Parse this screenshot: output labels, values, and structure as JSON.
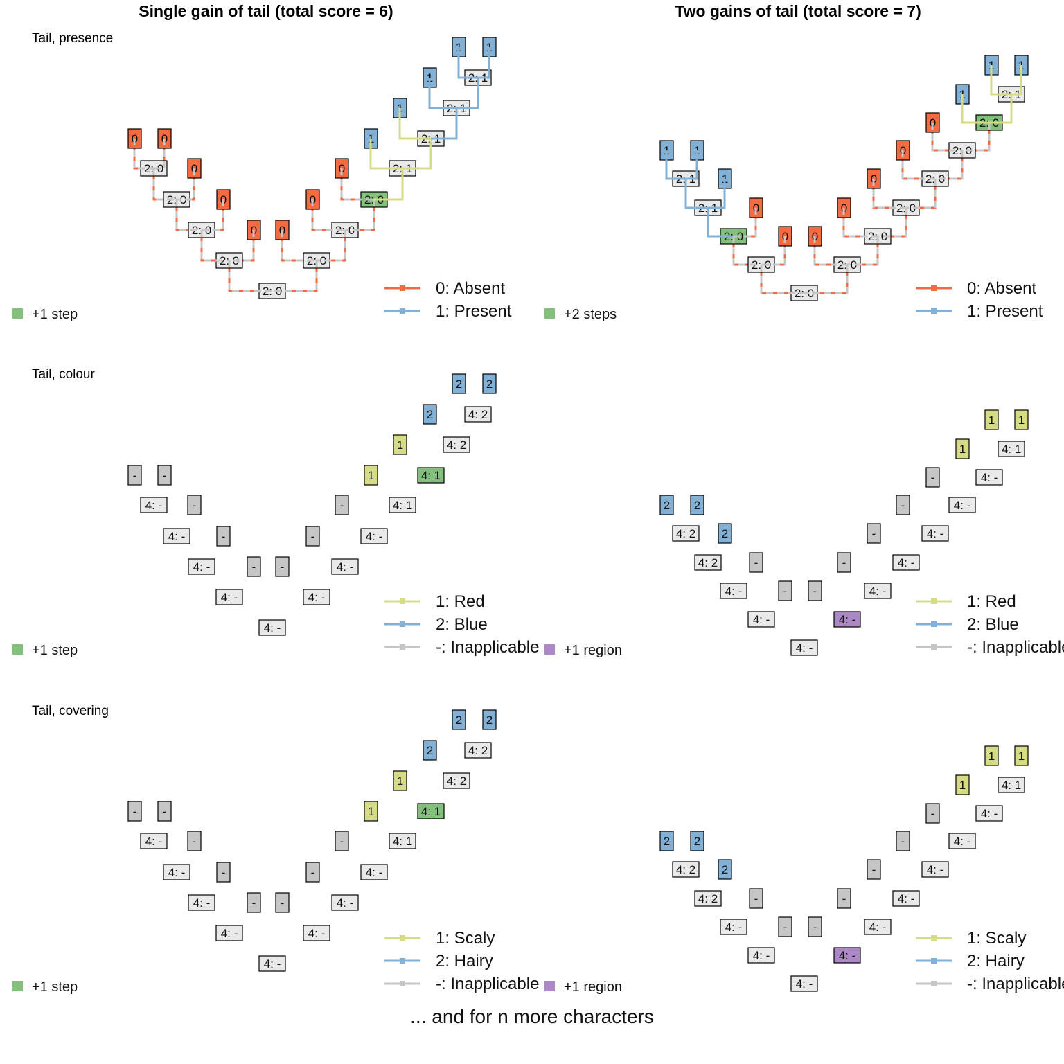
{
  "column_titles": [
    "Single gain of tail (total score = 6)",
    "Two gains of tail (total score = 7)"
  ],
  "footer": "... and for n more characters",
  "colors": {
    "absent": "#f26b43",
    "present": "#83b1d5",
    "red": "#d6dc86",
    "blue": "#83b1d5",
    "inapplicable": "#c6c6c6",
    "node_fill": "#e9e9e9",
    "step_highlight": "#82c07c",
    "region_highlight": "#ad88c6",
    "tip_inapplicable": "#c6c6c6"
  },
  "rows": [
    {
      "label": "Tail, presence",
      "panels": [
        {
          "tips": [
            {
              "text": "0",
              "state": "0"
            },
            {
              "text": "0",
              "state": "0"
            },
            {
              "text": "0",
              "state": "0"
            },
            {
              "text": "0",
              "state": "0"
            },
            {
              "text": "0",
              "state": "0"
            },
            {
              "text": "0",
              "state": "0"
            },
            {
              "text": "0",
              "state": "0"
            },
            {
              "text": "0",
              "state": "0"
            },
            {
              "text": "1",
              "state": "1"
            },
            {
              "text": "1",
              "state": "1"
            },
            {
              "text": "1",
              "state": "1"
            },
            {
              "text": "1",
              "state": "1"
            }
          ],
          "nodes": [
            {
              "text": "2: 0",
              "state": "0"
            },
            {
              "text": "2: 0",
              "state": "0"
            },
            {
              "text": "2: 0",
              "state": "0"
            },
            {
              "text": "2: 0",
              "state": "0"
            },
            {
              "text": "2: 0",
              "state": "0"
            },
            {
              "text": "2: 0",
              "state": "0"
            },
            {
              "text": "2: 0",
              "state": "0"
            },
            {
              "text": "2: 0",
              "state": "0",
              "highlight": "step"
            },
            {
              "text": "2: 1",
              "state": "1"
            },
            {
              "text": "2: 1",
              "state": "1"
            },
            {
              "text": "2: 1",
              "state": "1"
            },
            {
              "text": "2: 1",
              "state": "1"
            }
          ],
          "legend": [
            {
              "label": "0: Absent",
              "state": "0"
            },
            {
              "label": "1: Present",
              "state": "1"
            }
          ],
          "note": {
            "text": "+1 step",
            "kind": "step"
          }
        },
        {
          "tips": [
            {
              "text": "1",
              "state": "1"
            },
            {
              "text": "1",
              "state": "1"
            },
            {
              "text": "1",
              "state": "1"
            },
            {
              "text": "0",
              "state": "0"
            },
            {
              "text": "0",
              "state": "0"
            },
            {
              "text": "0",
              "state": "0"
            },
            {
              "text": "0",
              "state": "0"
            },
            {
              "text": "0",
              "state": "0"
            },
            {
              "text": "0",
              "state": "0"
            },
            {
              "text": "0",
              "state": "0"
            },
            {
              "text": "1",
              "state": "1"
            },
            {
              "text": "1",
              "state": "1"
            }
          ],
          "nodes": [
            {
              "text": "2: 1",
              "state": "1"
            },
            {
              "text": "2: 1",
              "state": "1"
            },
            {
              "text": "2: 0",
              "state": "0",
              "highlight": "step"
            },
            {
              "text": "2: 0",
              "state": "0"
            },
            {
              "text": "2: 0",
              "state": "0"
            },
            {
              "text": "2: 0",
              "state": "0"
            },
            {
              "text": "2: 0",
              "state": "0"
            },
            {
              "text": "2: 0",
              "state": "0"
            },
            {
              "text": "2: 0",
              "state": "0"
            },
            {
              "text": "2: 0",
              "state": "0"
            },
            {
              "text": "2: 0",
              "state": "0",
              "highlight": "step"
            },
            {
              "text": "2: 1",
              "state": "1"
            }
          ],
          "legend": [
            {
              "label": "0: Absent",
              "state": "0"
            },
            {
              "label": "1: Present",
              "state": "1"
            }
          ],
          "note": {
            "text": "+2 steps",
            "kind": "step"
          }
        }
      ]
    },
    {
      "label": "Tail, colour",
      "panels": [
        {
          "tips": [
            {
              "text": "-",
              "state": "-"
            },
            {
              "text": "-",
              "state": "-"
            },
            {
              "text": "-",
              "state": "-"
            },
            {
              "text": "-",
              "state": "-"
            },
            {
              "text": "-",
              "state": "-"
            },
            {
              "text": "-",
              "state": "-"
            },
            {
              "text": "-",
              "state": "-"
            },
            {
              "text": "-",
              "state": "-"
            },
            {
              "text": "1",
              "state": "1"
            },
            {
              "text": "1",
              "state": "1"
            },
            {
              "text": "2",
              "state": "2"
            },
            {
              "text": "2",
              "state": "2"
            }
          ],
          "nodes": [
            {
              "text": "4: -",
              "state": "-"
            },
            {
              "text": "4: -",
              "state": "-"
            },
            {
              "text": "4: -",
              "state": "-"
            },
            {
              "text": "4: -",
              "state": "-"
            },
            {
              "text": "4: -",
              "state": "-"
            },
            {
              "text": "4: -",
              "state": "-"
            },
            {
              "text": "4: -",
              "state": "-"
            },
            {
              "text": "4: -",
              "state": "-"
            },
            {
              "text": "4: 1",
              "state": "1"
            },
            {
              "text": "4: 1",
              "state": "1",
              "highlight": "step"
            },
            {
              "text": "4: 2",
              "state": "2"
            },
            {
              "text": "4: 2",
              "state": "2"
            }
          ],
          "legend": [
            {
              "label": "1: Red",
              "state": "1"
            },
            {
              "label": "2: Blue",
              "state": "2"
            },
            {
              "label": "-: Inapplicable",
              "state": "-"
            }
          ],
          "note": {
            "text": "+1 step",
            "kind": "step"
          }
        },
        {
          "tips": [
            {
              "text": "2",
              "state": "2"
            },
            {
              "text": "2",
              "state": "2"
            },
            {
              "text": "2",
              "state": "2"
            },
            {
              "text": "-",
              "state": "-"
            },
            {
              "text": "-",
              "state": "-"
            },
            {
              "text": "-",
              "state": "-"
            },
            {
              "text": "-",
              "state": "-"
            },
            {
              "text": "-",
              "state": "-"
            },
            {
              "text": "-",
              "state": "-"
            },
            {
              "text": "-",
              "state": "-"
            },
            {
              "text": "1",
              "state": "1"
            },
            {
              "text": "1",
              "state": "1"
            }
          ],
          "nodes": [
            {
              "text": "4: 2",
              "state": "2"
            },
            {
              "text": "4: 2",
              "state": "2"
            },
            {
              "text": "4: -",
              "state": "-"
            },
            {
              "text": "4: -",
              "state": "-"
            },
            {
              "text": "4: -",
              "state": "-"
            },
            {
              "text": "4: -",
              "state": "-",
              "highlight": "region"
            },
            {
              "text": "4: -",
              "state": "-"
            },
            {
              "text": "4: -",
              "state": "-"
            },
            {
              "text": "4: -",
              "state": "-"
            },
            {
              "text": "4: -",
              "state": "-"
            },
            {
              "text": "4: -",
              "state": "-"
            },
            {
              "text": "4: 1",
              "state": "1"
            }
          ],
          "legend": [
            {
              "label": "1: Red",
              "state": "1"
            },
            {
              "label": "2: Blue",
              "state": "2"
            },
            {
              "label": "-: Inapplicable",
              "state": "-"
            }
          ],
          "note": {
            "text": "+1 region",
            "kind": "region"
          }
        }
      ]
    },
    {
      "label": "Tail, covering",
      "panels": [
        {
          "tips": [
            {
              "text": "-",
              "state": "-"
            },
            {
              "text": "-",
              "state": "-"
            },
            {
              "text": "-",
              "state": "-"
            },
            {
              "text": "-",
              "state": "-"
            },
            {
              "text": "-",
              "state": "-"
            },
            {
              "text": "-",
              "state": "-"
            },
            {
              "text": "-",
              "state": "-"
            },
            {
              "text": "-",
              "state": "-"
            },
            {
              "text": "1",
              "state": "1"
            },
            {
              "text": "1",
              "state": "1"
            },
            {
              "text": "2",
              "state": "2"
            },
            {
              "text": "2",
              "state": "2"
            }
          ],
          "nodes": [
            {
              "text": "4: -",
              "state": "-"
            },
            {
              "text": "4: -",
              "state": "-"
            },
            {
              "text": "4: -",
              "state": "-"
            },
            {
              "text": "4: -",
              "state": "-"
            },
            {
              "text": "4: -",
              "state": "-"
            },
            {
              "text": "4: -",
              "state": "-"
            },
            {
              "text": "4: -",
              "state": "-"
            },
            {
              "text": "4: -",
              "state": "-"
            },
            {
              "text": "4: 1",
              "state": "1"
            },
            {
              "text": "4: 1",
              "state": "1",
              "highlight": "step"
            },
            {
              "text": "4: 2",
              "state": "2"
            },
            {
              "text": "4: 2",
              "state": "2"
            }
          ],
          "legend": [
            {
              "label": "1: Scaly",
              "state": "1"
            },
            {
              "label": "2: Hairy",
              "state": "2"
            },
            {
              "label": "-: Inapplicable",
              "state": "-"
            }
          ],
          "note": {
            "text": "+1 step",
            "kind": "step"
          }
        },
        {
          "tips": [
            {
              "text": "2",
              "state": "2"
            },
            {
              "text": "2",
              "state": "2"
            },
            {
              "text": "2",
              "state": "2"
            },
            {
              "text": "-",
              "state": "-"
            },
            {
              "text": "-",
              "state": "-"
            },
            {
              "text": "-",
              "state": "-"
            },
            {
              "text": "-",
              "state": "-"
            },
            {
              "text": "-",
              "state": "-"
            },
            {
              "text": "-",
              "state": "-"
            },
            {
              "text": "-",
              "state": "-"
            },
            {
              "text": "1",
              "state": "1"
            },
            {
              "text": "1",
              "state": "1"
            }
          ],
          "nodes": [
            {
              "text": "4: 2",
              "state": "2"
            },
            {
              "text": "4: 2",
              "state": "2"
            },
            {
              "text": "4: -",
              "state": "-"
            },
            {
              "text": "4: -",
              "state": "-"
            },
            {
              "text": "4: -",
              "state": "-"
            },
            {
              "text": "4: -",
              "state": "-",
              "highlight": "region"
            },
            {
              "text": "4: -",
              "state": "-"
            },
            {
              "text": "4: -",
              "state": "-"
            },
            {
              "text": "4: -",
              "state": "-"
            },
            {
              "text": "4: -",
              "state": "-"
            },
            {
              "text": "4: -",
              "state": "-"
            },
            {
              "text": "4: 1",
              "state": "1"
            }
          ],
          "legend": [
            {
              "label": "1: Scaly",
              "state": "1"
            },
            {
              "label": "2: Hairy",
              "state": "2"
            },
            {
              "label": "-: Inapplicable",
              "state": "-"
            }
          ],
          "note": {
            "text": "+1 region",
            "kind": "region"
          }
        }
      ]
    }
  ]
}
